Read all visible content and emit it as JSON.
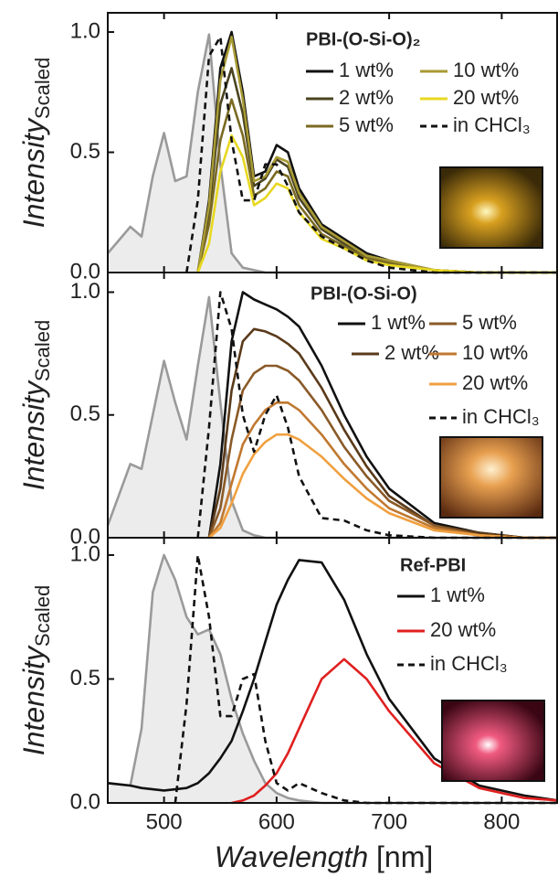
{
  "chart_data": [
    {
      "type": "line",
      "title": "PBI-(O-Si-O)₂",
      "y_label": "Intensity",
      "y_label_sub": "Scaled",
      "x": [
        450,
        470,
        480,
        490,
        500,
        510,
        520,
        530,
        540,
        550,
        560,
        570,
        580,
        590,
        600,
        610,
        620,
        640,
        660,
        680,
        700,
        740,
        780,
        820,
        850
      ],
      "xlim": [
        450,
        850
      ],
      "xticks": [
        500,
        600,
        700,
        800
      ],
      "ylim": [
        0,
        1.08
      ],
      "yticks": [
        {
          "value": 0,
          "label": "0.0"
        },
        {
          "value": 0.5,
          "label": "0.5"
        },
        {
          "value": 1,
          "label": "1.0"
        }
      ],
      "series": [
        {
          "color": "#9a9a9a",
          "fill": "#ececec",
          "values": [
            0.08,
            0.19,
            0.15,
            0.4,
            0.58,
            0.38,
            0.4,
            0.75,
            0.99,
            0.45,
            0.08,
            0.02,
            0.01,
            0,
            0,
            0,
            0,
            0,
            0,
            0,
            0,
            0,
            0,
            0,
            0
          ]
        },
        {
          "name": "1 wt%",
          "color": "#111111",
          "values": [
            null,
            null,
            null,
            null,
            null,
            null,
            null,
            0,
            0.3,
            0.85,
            1.0,
            0.75,
            0.4,
            0.42,
            0.53,
            0.5,
            0.35,
            0.2,
            0.14,
            0.08,
            0.05,
            0.01,
            0,
            0,
            0
          ]
        },
        {
          "name": "2 wt%",
          "color": "#4a4420",
          "values": [
            null,
            null,
            null,
            null,
            null,
            null,
            null,
            0,
            0.25,
            0.7,
            0.85,
            0.66,
            0.36,
            0.39,
            0.47,
            0.44,
            0.31,
            0.18,
            0.12,
            0.07,
            0.04,
            0.01,
            0,
            0,
            0
          ]
        },
        {
          "name": "5 wt%",
          "color": "#7a6a22",
          "values": [
            null,
            null,
            null,
            null,
            null,
            null,
            null,
            0,
            0.2,
            0.55,
            0.72,
            0.57,
            0.32,
            0.35,
            0.42,
            0.4,
            0.28,
            0.16,
            0.11,
            0.06,
            0.04,
            0.01,
            0,
            0,
            0
          ]
        },
        {
          "name": "10 wt%",
          "color": "#a89a34",
          "values": [
            null,
            null,
            null,
            null,
            null,
            null,
            null,
            0,
            0.28,
            0.8,
            0.98,
            0.72,
            0.38,
            0.4,
            0.48,
            0.46,
            0.33,
            0.19,
            0.13,
            0.07,
            0.05,
            0.01,
            0,
            0,
            0
          ]
        },
        {
          "name": "20 wt%",
          "color": "#e8d820",
          "values": [
            null,
            null,
            null,
            null,
            null,
            null,
            null,
            0,
            0.12,
            0.42,
            0.57,
            0.48,
            0.28,
            0.31,
            0.37,
            0.35,
            0.25,
            0.14,
            0.1,
            0.05,
            0.03,
            0.01,
            0,
            0,
            0
          ]
        },
        {
          "name": "in CHCl₃",
          "color": "#111111",
          "style": "dashed",
          "values": [
            null,
            null,
            null,
            null,
            null,
            null,
            0,
            0.3,
            0.9,
            0.98,
            0.55,
            0.3,
            0.3,
            0.45,
            0.45,
            0.36,
            0.25,
            0.15,
            0.1,
            0.05,
            0.02,
            0,
            0,
            0,
            0
          ]
        }
      ]
    },
    {
      "type": "line",
      "title": "PBI-(O-Si-O)",
      "y_label": "Intensity",
      "y_label_sub": "Scaled",
      "x": [
        450,
        470,
        480,
        490,
        500,
        510,
        520,
        530,
        540,
        550,
        560,
        570,
        580,
        590,
        600,
        610,
        620,
        640,
        660,
        680,
        700,
        740,
        780,
        820,
        850
      ],
      "xlim": [
        450,
        850
      ],
      "xticks": [
        500,
        600,
        700,
        800
      ],
      "ylim": [
        0,
        1.08
      ],
      "yticks": [
        {
          "value": 0,
          "label": "0.0"
        },
        {
          "value": 0.5,
          "label": "0.5"
        },
        {
          "value": 1,
          "label": "1.0"
        }
      ],
      "series": [
        {
          "color": "#9a9a9a",
          "fill": "#ececec",
          "values": [
            0.05,
            0.3,
            0.28,
            0.5,
            0.72,
            0.55,
            0.4,
            0.7,
            0.98,
            0.55,
            0.15,
            0.03,
            0.01,
            0,
            0,
            0,
            0,
            0,
            0,
            0,
            0,
            0,
            0,
            0,
            0
          ]
        },
        {
          "name": "1 wt%",
          "color": "#111111",
          "values": [
            null,
            null,
            null,
            null,
            null,
            null,
            null,
            null,
            0,
            0.3,
            0.8,
            1.0,
            0.97,
            0.95,
            0.93,
            0.9,
            0.86,
            0.7,
            0.5,
            0.33,
            0.2,
            0.06,
            0.02,
            0,
            0
          ]
        },
        {
          "name": "2 wt%",
          "color": "#5a3a1a",
          "values": [
            null,
            null,
            null,
            null,
            null,
            null,
            null,
            null,
            0,
            0.2,
            0.6,
            0.8,
            0.85,
            0.84,
            0.82,
            0.79,
            0.75,
            0.61,
            0.44,
            0.29,
            0.17,
            0.05,
            0.02,
            0,
            0
          ]
        },
        {
          "name": "5 wt%",
          "color": "#8a5a28",
          "values": [
            null,
            null,
            null,
            null,
            null,
            null,
            null,
            null,
            0,
            0.12,
            0.4,
            0.6,
            0.67,
            0.7,
            0.7,
            0.68,
            0.64,
            0.52,
            0.37,
            0.25,
            0.15,
            0.05,
            0.01,
            0,
            0
          ]
        },
        {
          "name": "10 wt%",
          "color": "#c07830",
          "values": [
            null,
            null,
            null,
            null,
            null,
            null,
            null,
            null,
            0,
            0.06,
            0.22,
            0.38,
            0.46,
            0.52,
            0.55,
            0.55,
            0.52,
            0.42,
            0.3,
            0.2,
            0.12,
            0.04,
            0.01,
            0,
            0
          ]
        },
        {
          "name": "20 wt%",
          "color": "#f0a040",
          "values": [
            null,
            null,
            null,
            null,
            null,
            null,
            null,
            null,
            0,
            0.04,
            0.14,
            0.26,
            0.34,
            0.39,
            0.42,
            0.42,
            0.4,
            0.33,
            0.24,
            0.16,
            0.1,
            0.03,
            0.01,
            0,
            0
          ]
        },
        {
          "name": "in CHCl₃",
          "color": "#111111",
          "style": "dashed",
          "values": [
            null,
            null,
            null,
            null,
            null,
            null,
            null,
            0,
            0.45,
            1.0,
            0.85,
            0.5,
            0.35,
            0.5,
            0.58,
            0.45,
            0.25,
            0.08,
            0.07,
            0.03,
            0.01,
            0,
            0,
            0,
            0
          ]
        }
      ]
    },
    {
      "type": "line",
      "title": "Ref-PBI",
      "y_label": "Intensity",
      "y_label_sub": "Scaled",
      "x_label": "Wavelength",
      "x_label_unit": "[nm]",
      "x": [
        450,
        470,
        480,
        490,
        500,
        510,
        520,
        530,
        540,
        550,
        560,
        570,
        580,
        590,
        600,
        610,
        620,
        640,
        660,
        680,
        700,
        740,
        780,
        820,
        850
      ],
      "xlim": [
        450,
        850
      ],
      "xticks": [
        500,
        600,
        700,
        800
      ],
      "ylim": [
        0,
        1.07
      ],
      "yticks": [
        {
          "value": 0,
          "label": "0.0"
        },
        {
          "value": 0.5,
          "label": "0.5"
        },
        {
          "value": 1,
          "label": "1.0"
        }
      ],
      "series": [
        {
          "color": "#9a9a9a",
          "fill": "#ececec",
          "values": [
            0.08,
            0.07,
            0.3,
            0.85,
            1.0,
            0.9,
            0.75,
            0.68,
            0.7,
            0.6,
            0.42,
            0.28,
            0.17,
            0.08,
            0.04,
            0.02,
            0.01,
            0,
            0,
            0,
            0,
            0,
            0,
            0,
            0
          ]
        },
        {
          "name": "1 wt%",
          "color": "#111111",
          "values": [
            0.08,
            0.07,
            0.06,
            0.055,
            0.05,
            0.055,
            0.06,
            0.08,
            0.12,
            0.18,
            0.25,
            0.37,
            0.5,
            0.65,
            0.8,
            0.9,
            0.98,
            0.97,
            0.82,
            0.6,
            0.42,
            0.18,
            0.07,
            0.03,
            0.01
          ]
        },
        {
          "name": "20 wt%",
          "color": "#e02020",
          "values": [
            null,
            null,
            null,
            null,
            null,
            null,
            null,
            null,
            null,
            null,
            0,
            0.01,
            0.03,
            0.07,
            0.12,
            0.2,
            0.3,
            0.5,
            0.58,
            0.5,
            0.37,
            0.16,
            0.06,
            0.02,
            0.01
          ]
        },
        {
          "name": "in CHCl₃",
          "color": "#111111",
          "style": "dashed",
          "values": [
            null,
            null,
            null,
            null,
            null,
            0,
            0.4,
            1.0,
            0.75,
            0.35,
            0.35,
            0.5,
            0.52,
            0.25,
            0.08,
            0.05,
            0.08,
            0.04,
            0.01,
            0,
            0,
            0,
            0,
            0,
            0
          ]
        }
      ]
    }
  ]
}
